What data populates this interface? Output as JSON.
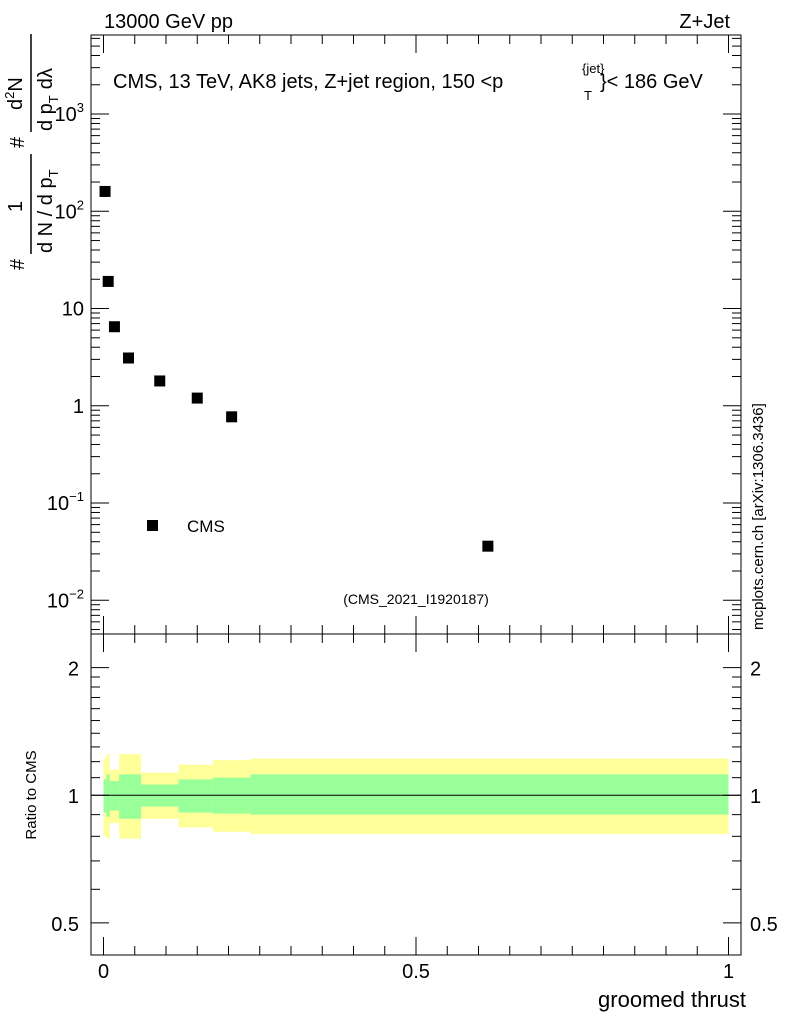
{
  "header": {
    "left_label": "13000 GeV pp",
    "right_label": "Z+Jet"
  },
  "watermark": "mcplots.cern.ch [arXiv:1306.3436]",
  "colors": {
    "band_outer": "#ffff99",
    "band_inner": "#99ff99",
    "marker": "#000000",
    "analysis_id": "#999999"
  },
  "chart_data": [
    {
      "type": "scatter",
      "panel": "main",
      "title_parts": {
        "before": "CMS, 13 TeV, AK8 jets, Z+jet region, 150 <",
        "p": "p",
        "sup": "{jet}",
        "sub": "T",
        "after": "}< 186 GeV"
      },
      "ylabel_parts": {
        "hash1": "#",
        "one": "1",
        "denom": "d N / d p",
        "denom_sub": "T",
        "hash2": "#",
        "num2": "d",
        "num2_sup": "2",
        "num2_rest": "N",
        "den2": "d p",
        "den2_sub": "T",
        "den2_rest": "dλ"
      },
      "yscale": "log",
      "ylim": [
        0.0045,
        6500
      ],
      "xlim": [
        -0.02,
        1.02
      ],
      "y_ticks": [
        {
          "value": 0.01,
          "base": "10",
          "exp": "−2"
        },
        {
          "value": 0.1,
          "base": "10",
          "exp": "−1"
        },
        {
          "value": 1,
          "base": "1",
          "exp": ""
        },
        {
          "value": 10,
          "base": "10",
          "exp": ""
        },
        {
          "value": 100,
          "base": "10",
          "exp": "2"
        },
        {
          "value": 1000,
          "base": "10",
          "exp": "3"
        }
      ],
      "series": [
        {
          "name": "CMS",
          "x": [
            0.0025,
            0.0075,
            0.0175,
            0.04,
            0.09,
            0.15,
            0.205,
            0.615
          ],
          "y": [
            160,
            19,
            6.5,
            3.1,
            1.8,
            1.2,
            0.77,
            0.036
          ]
        }
      ],
      "legend": {
        "position": "lower-left",
        "label": "CMS"
      },
      "analysis_id": "(CMS_2021_I1920187)"
    },
    {
      "type": "area",
      "panel": "ratio",
      "ylabel": "Ratio to CMS",
      "xlabel": "groomed thrust",
      "yscale": "log",
      "ylim": [
        0.42,
        2.4
      ],
      "xlim": [
        -0.02,
        1.02
      ],
      "x_ticks": [
        {
          "value": 0,
          "label": "0"
        },
        {
          "value": 0.5,
          "label": "0.5"
        },
        {
          "value": 1,
          "label": "1"
        }
      ],
      "y_ticks": [
        {
          "value": 0.5,
          "label": "0.5"
        },
        {
          "value": 1,
          "label": "1"
        },
        {
          "value": 2,
          "label": "2"
        }
      ],
      "reference_line": 1,
      "bins": [
        {
          "x0": 0.0,
          "x1": 0.005,
          "inner": [
            0.91,
            1.09
          ],
          "outer": [
            0.8,
            1.22
          ]
        },
        {
          "x0": 0.005,
          "x1": 0.01,
          "inner": [
            0.89,
            1.12
          ],
          "outer": [
            0.79,
            1.25
          ]
        },
        {
          "x0": 0.01,
          "x1": 0.025,
          "inner": [
            0.92,
            1.08
          ],
          "outer": [
            0.86,
            1.15
          ]
        },
        {
          "x0": 0.025,
          "x1": 0.06,
          "inner": [
            0.88,
            1.12
          ],
          "outer": [
            0.79,
            1.25
          ]
        },
        {
          "x0": 0.06,
          "x1": 0.12,
          "inner": [
            0.94,
            1.06
          ],
          "outer": [
            0.88,
            1.13
          ]
        },
        {
          "x0": 0.12,
          "x1": 0.175,
          "inner": [
            0.91,
            1.09
          ],
          "outer": [
            0.84,
            1.18
          ]
        },
        {
          "x0": 0.175,
          "x1": 0.235,
          "inner": [
            0.905,
            1.1
          ],
          "outer": [
            0.82,
            1.21
          ]
        },
        {
          "x0": 0.235,
          "x1": 1.0,
          "inner": [
            0.9,
            1.12
          ],
          "outer": [
            0.81,
            1.22
          ]
        }
      ]
    }
  ]
}
